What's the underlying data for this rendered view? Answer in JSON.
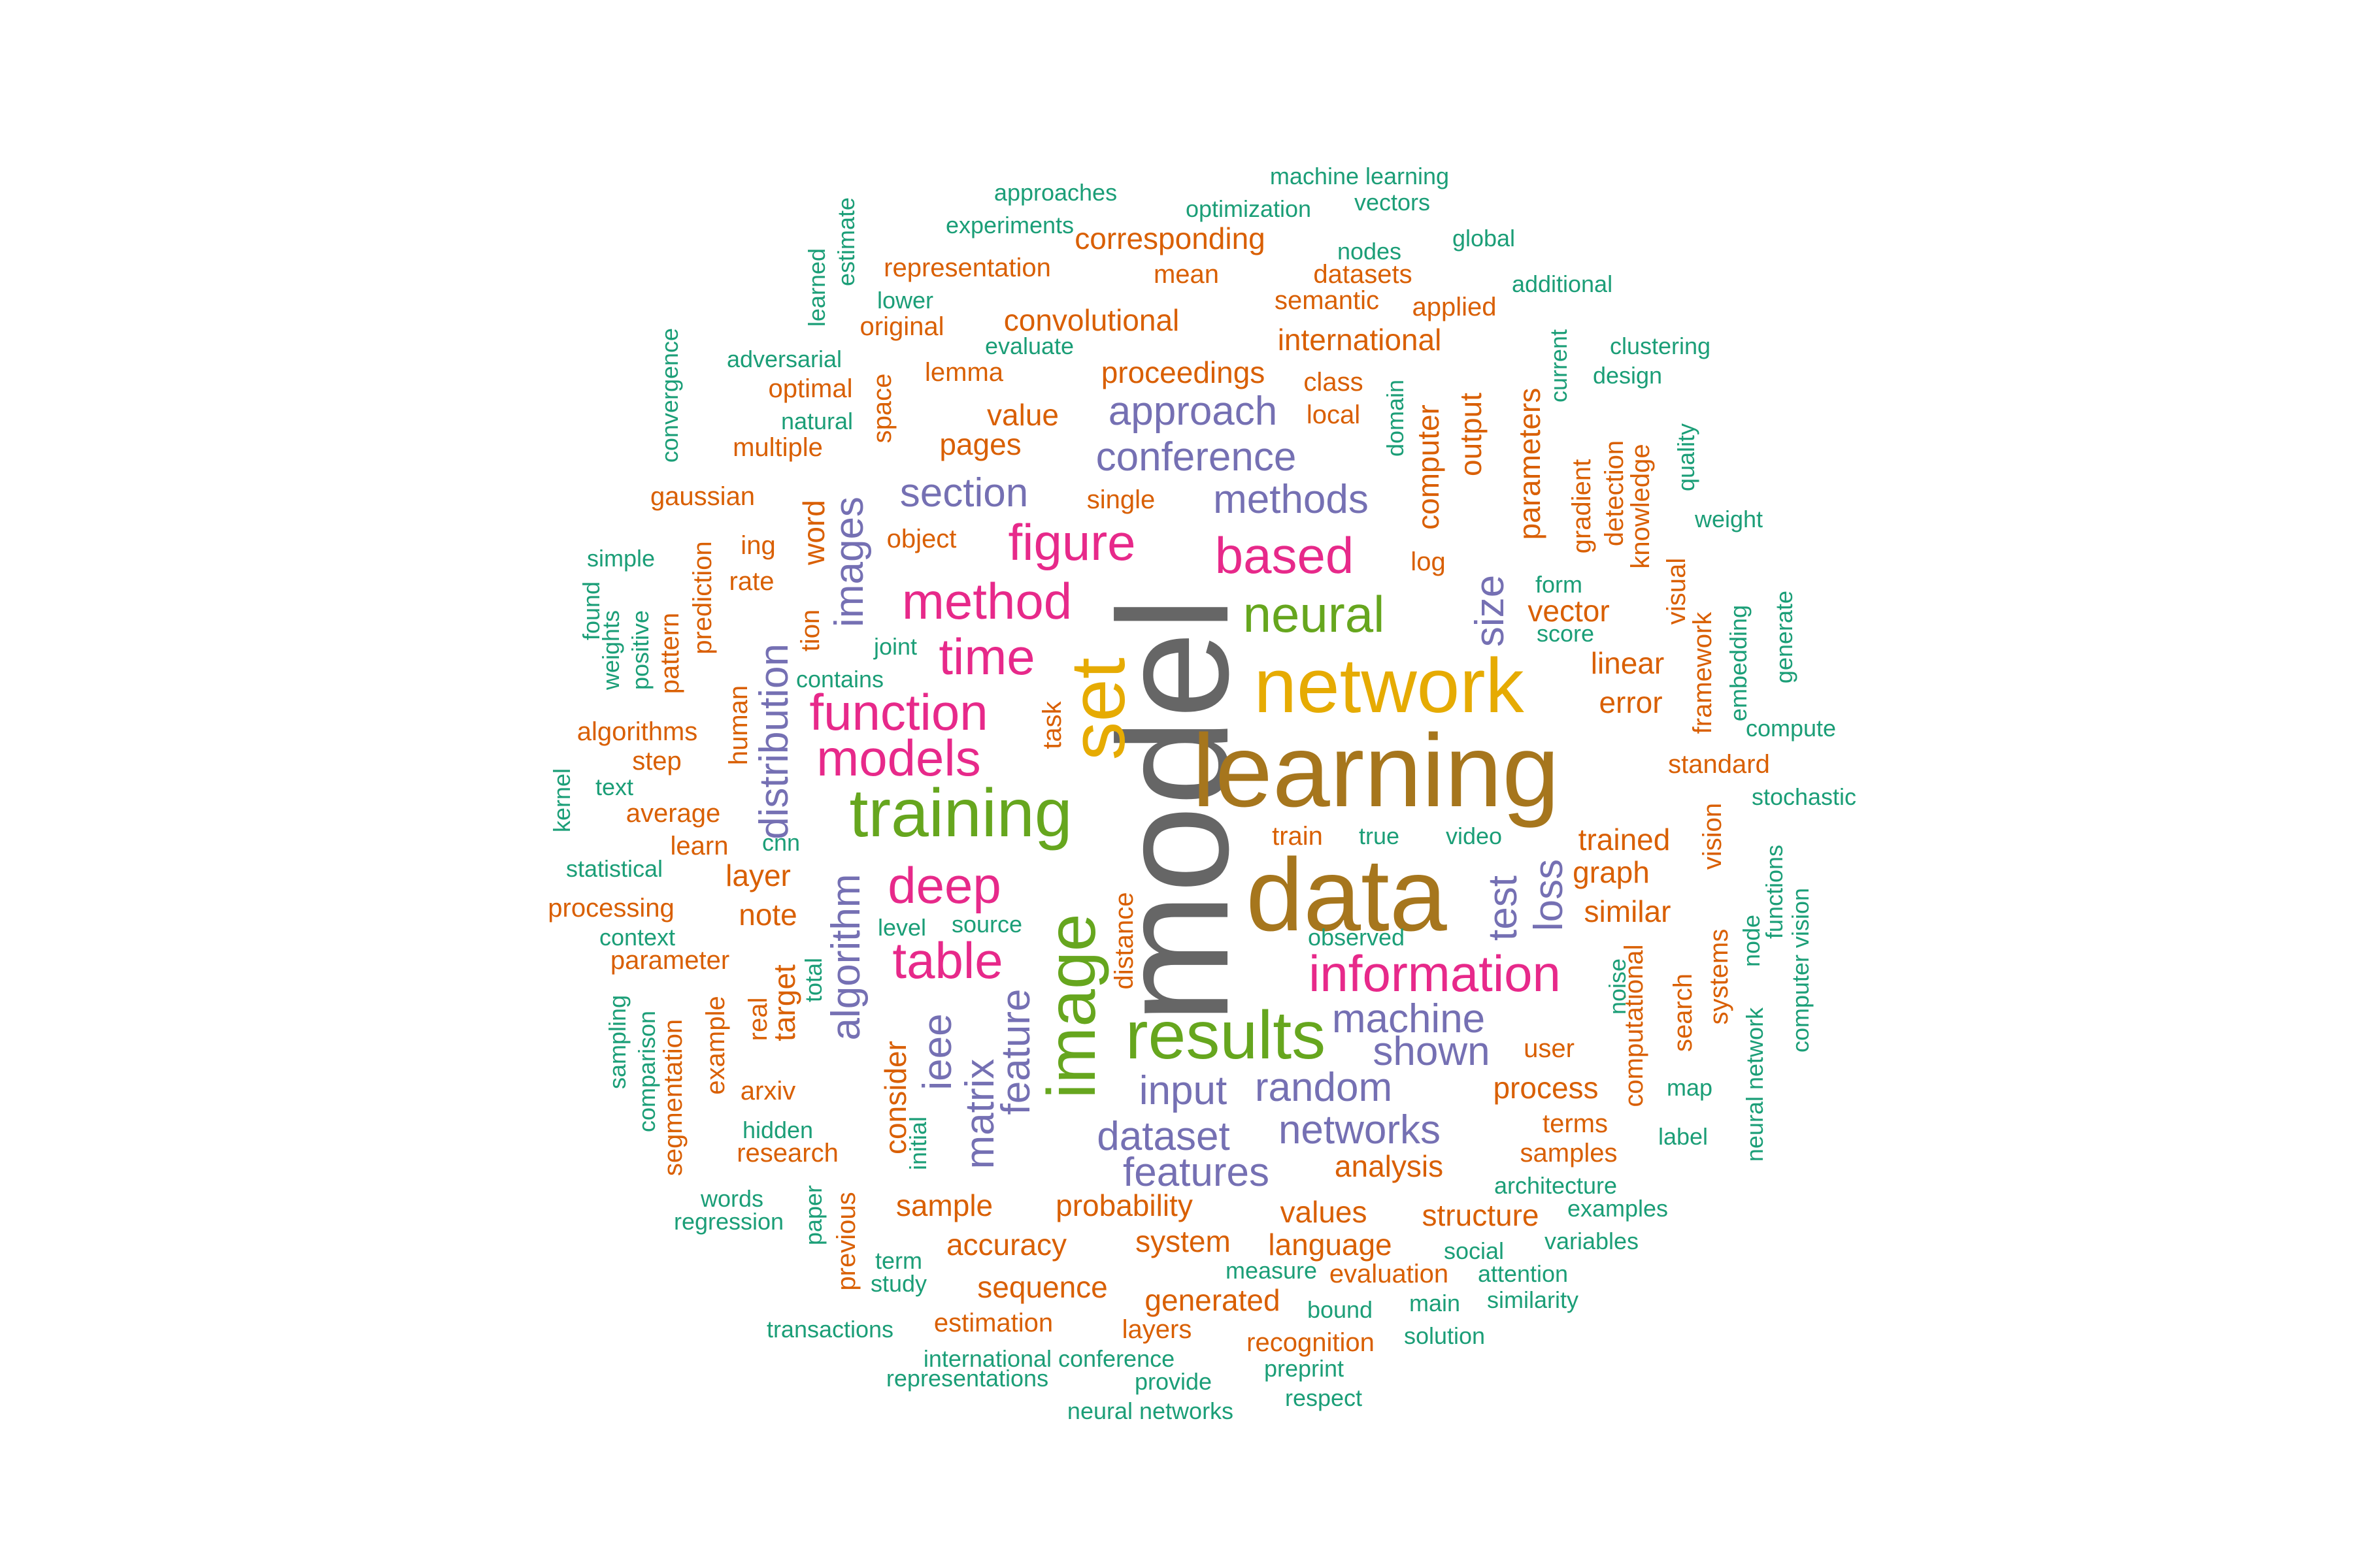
{
  "palette": {
    "green": "#1b9e77",
    "orange": "#d95f02",
    "purple": "#7570b3",
    "pink": "#e7298a",
    "lime": "#66a61e",
    "gold": "#e6ab02",
    "brown": "#a6761d",
    "gray": "#666666"
  },
  "words": [
    {
      "text": "model",
      "color": "gray",
      "tier": 9,
      "rotated": true
    },
    {
      "text": "learning",
      "color": "brown",
      "tier": 8
    },
    {
      "text": "data",
      "color": "brown",
      "tier": 8
    },
    {
      "text": "network",
      "color": "gold",
      "tier": 7
    },
    {
      "text": "set",
      "color": "gold",
      "tier": 7,
      "rotated": true
    },
    {
      "text": "training",
      "color": "lime",
      "tier": 6
    },
    {
      "text": "image",
      "color": "lime",
      "tier": 6,
      "rotated": true
    },
    {
      "text": "results",
      "color": "lime",
      "tier": 6
    },
    {
      "text": "neural",
      "color": "lime",
      "tier": 5
    },
    {
      "text": "based",
      "color": "pink",
      "tier": 5
    },
    {
      "text": "information",
      "color": "pink",
      "tier": 5
    },
    {
      "text": "figure",
      "color": "pink",
      "tier": 5
    },
    {
      "text": "method",
      "color": "pink",
      "tier": 5
    },
    {
      "text": "function",
      "color": "pink",
      "tier": 5
    },
    {
      "text": "models",
      "color": "pink",
      "tier": 5
    },
    {
      "text": "deep",
      "color": "pink",
      "tier": 5
    },
    {
      "text": "table",
      "color": "pink",
      "tier": 5
    },
    {
      "text": "time",
      "color": "pink",
      "tier": 5
    },
    {
      "text": "algorithm",
      "color": "purple",
      "tier": 4,
      "rotated": true
    },
    {
      "text": "feature",
      "color": "purple",
      "tier": 4,
      "rotated": true
    },
    {
      "text": "conference",
      "color": "purple",
      "tier": 4
    },
    {
      "text": "methods",
      "color": "purple",
      "tier": 4
    },
    {
      "text": "section",
      "color": "purple",
      "tier": 4
    },
    {
      "text": "approach",
      "color": "purple",
      "tier": 4
    },
    {
      "text": "random",
      "color": "purple",
      "tier": 4
    },
    {
      "text": "networks",
      "color": "purple",
      "tier": 4
    },
    {
      "text": "machine",
      "color": "purple",
      "tier": 4
    },
    {
      "text": "input",
      "color": "purple",
      "tier": 4
    },
    {
      "text": "dataset",
      "color": "purple",
      "tier": 4
    },
    {
      "text": "features",
      "color": "purple",
      "tier": 4
    },
    {
      "text": "shown",
      "color": "purple",
      "tier": 4
    },
    {
      "text": "images",
      "color": "purple",
      "tier": 4,
      "rotated": true
    },
    {
      "text": "matrix",
      "color": "purple",
      "tier": 4,
      "rotated": true
    },
    {
      "text": "ieee",
      "color": "purple",
      "tier": 4,
      "rotated": true
    },
    {
      "text": "distribution",
      "color": "purple",
      "tier": 4,
      "rotated": true
    },
    {
      "text": "test",
      "color": "purple",
      "tier": 4,
      "rotated": true
    },
    {
      "text": "loss",
      "color": "purple",
      "tier": 4,
      "rotated": true
    },
    {
      "text": "size",
      "color": "purple",
      "tier": 4,
      "rotated": true
    },
    {
      "text": "probability",
      "color": "orange",
      "tier": 3
    },
    {
      "text": "proceedings",
      "color": "orange",
      "tier": 3
    },
    {
      "text": "international",
      "color": "orange",
      "tier": 3
    },
    {
      "text": "convolutional",
      "color": "orange",
      "tier": 3
    },
    {
      "text": "value",
      "color": "orange",
      "tier": 3
    },
    {
      "text": "pages",
      "color": "orange",
      "tier": 3
    },
    {
      "text": "vector",
      "color": "orange",
      "tier": 3
    },
    {
      "text": "values",
      "color": "orange",
      "tier": 3
    },
    {
      "text": "analysis",
      "color": "orange",
      "tier": 3
    },
    {
      "text": "trained",
      "color": "orange",
      "tier": 3
    },
    {
      "text": "graph",
      "color": "orange",
      "tier": 3
    },
    {
      "text": "similar",
      "color": "orange",
      "tier": 3
    },
    {
      "text": "layer",
      "color": "orange",
      "tier": 3
    },
    {
      "text": "note",
      "color": "orange",
      "tier": 3
    },
    {
      "text": "sequence",
      "color": "orange",
      "tier": 3
    },
    {
      "text": "accuracy",
      "color": "orange",
      "tier": 3
    },
    {
      "text": "process",
      "color": "orange",
      "tier": 3
    },
    {
      "text": "structure",
      "color": "orange",
      "tier": 3
    },
    {
      "text": "language",
      "color": "orange",
      "tier": 3
    },
    {
      "text": "system",
      "color": "orange",
      "tier": 3
    },
    {
      "text": "sample",
      "color": "orange",
      "tier": 3
    },
    {
      "text": "generated",
      "color": "orange",
      "tier": 3
    },
    {
      "text": "linear",
      "color": "orange",
      "tier": 3
    },
    {
      "text": "error",
      "color": "orange",
      "tier": 3
    },
    {
      "text": "corresponding",
      "color": "orange",
      "tier": 3
    },
    {
      "text": "computer",
      "color": "orange",
      "tier": 3,
      "rotated": true
    },
    {
      "text": "output",
      "color": "orange",
      "tier": 3,
      "rotated": true
    },
    {
      "text": "parameters",
      "color": "orange",
      "tier": 3,
      "rotated": true
    },
    {
      "text": "word",
      "color": "orange",
      "tier": 3,
      "rotated": true
    },
    {
      "text": "target",
      "color": "orange",
      "tier": 3,
      "rotated": true
    },
    {
      "text": "consider",
      "color": "orange",
      "tier": 3,
      "rotated": true
    },
    {
      "text": "computational",
      "color": "orange",
      "tier": 2,
      "rotated": true
    },
    {
      "text": "representation",
      "color": "orange",
      "tier": 2
    },
    {
      "text": "mean",
      "color": "orange",
      "tier": 2
    },
    {
      "text": "datasets",
      "color": "orange",
      "tier": 2
    },
    {
      "text": "semantic",
      "color": "orange",
      "tier": 2
    },
    {
      "text": "original",
      "color": "orange",
      "tier": 2
    },
    {
      "text": "applied",
      "color": "orange",
      "tier": 2
    },
    {
      "text": "lemma",
      "color": "orange",
      "tier": 2
    },
    {
      "text": "class",
      "color": "orange",
      "tier": 2
    },
    {
      "text": "local",
      "color": "orange",
      "tier": 2
    },
    {
      "text": "optimal",
      "color": "orange",
      "tier": 2
    },
    {
      "text": "multiple",
      "color": "orange",
      "tier": 2
    },
    {
      "text": "gaussian",
      "color": "orange",
      "tier": 2
    },
    {
      "text": "single",
      "color": "orange",
      "tier": 2
    },
    {
      "text": "object",
      "color": "orange",
      "tier": 2
    },
    {
      "text": "ing",
      "color": "orange",
      "tier": 2
    },
    {
      "text": "rate",
      "color": "orange",
      "tier": 2
    },
    {
      "text": "log",
      "color": "orange",
      "tier": 2
    },
    {
      "text": "algorithms",
      "color": "orange",
      "tier": 2
    },
    {
      "text": "step",
      "color": "orange",
      "tier": 2
    },
    {
      "text": "average",
      "color": "orange",
      "tier": 2
    },
    {
      "text": "learn",
      "color": "orange",
      "tier": 2
    },
    {
      "text": "processing",
      "color": "orange",
      "tier": 2
    },
    {
      "text": "parameter",
      "color": "orange",
      "tier": 2
    },
    {
      "text": "standard",
      "color": "orange",
      "tier": 2
    },
    {
      "text": "train",
      "color": "orange",
      "tier": 2
    },
    {
      "text": "user",
      "color": "orange",
      "tier": 2
    },
    {
      "text": "terms",
      "color": "orange",
      "tier": 2
    },
    {
      "text": "samples",
      "color": "orange",
      "tier": 2
    },
    {
      "text": "arxiv",
      "color": "orange",
      "tier": 2
    },
    {
      "text": "research",
      "color": "orange",
      "tier": 2
    },
    {
      "text": "evaluation",
      "color": "orange",
      "tier": 2
    },
    {
      "text": "recognition",
      "color": "orange",
      "tier": 2
    },
    {
      "text": "estimation",
      "color": "orange",
      "tier": 2
    },
    {
      "text": "layers",
      "color": "orange",
      "tier": 2
    },
    {
      "text": "space",
      "color": "orange",
      "tier": 2,
      "rotated": true
    },
    {
      "text": "prediction",
      "color": "orange",
      "tier": 2,
      "rotated": true
    },
    {
      "text": "pattern",
      "color": "orange",
      "tier": 2,
      "rotated": true
    },
    {
      "text": "tion",
      "color": "orange",
      "tier": 2,
      "rotated": true
    },
    {
      "text": "human",
      "color": "orange",
      "tier": 2,
      "rotated": true
    },
    {
      "text": "task",
      "color": "orange",
      "tier": 2,
      "rotated": true
    },
    {
      "text": "distance",
      "color": "orange",
      "tier": 2,
      "rotated": true
    },
    {
      "text": "real",
      "color": "orange",
      "tier": 2,
      "rotated": true
    },
    {
      "text": "example",
      "color": "orange",
      "tier": 2,
      "rotated": true
    },
    {
      "text": "segmentation",
      "color": "orange",
      "tier": 2,
      "rotated": true
    },
    {
      "text": "previous",
      "color": "orange",
      "tier": 2,
      "rotated": true
    },
    {
      "text": "gradient",
      "color": "orange",
      "tier": 2,
      "rotated": true
    },
    {
      "text": "detection",
      "color": "orange",
      "tier": 2,
      "rotated": true
    },
    {
      "text": "knowledge",
      "color": "orange",
      "tier": 2,
      "rotated": true
    },
    {
      "text": "visual",
      "color": "orange",
      "tier": 2,
      "rotated": true
    },
    {
      "text": "framework",
      "color": "orange",
      "tier": 2,
      "rotated": true
    },
    {
      "text": "vision",
      "color": "orange",
      "tier": 2,
      "rotated": true
    },
    {
      "text": "search",
      "color": "orange",
      "tier": 2,
      "rotated": true
    },
    {
      "text": "systems",
      "color": "orange",
      "tier": 2,
      "rotated": true
    },
    {
      "text": "machine learning",
      "color": "green",
      "tier": 1
    },
    {
      "text": "approaches",
      "color": "green",
      "tier": 1
    },
    {
      "text": "optimization",
      "color": "green",
      "tier": 1
    },
    {
      "text": "vectors",
      "color": "green",
      "tier": 1
    },
    {
      "text": "experiments",
      "color": "green",
      "tier": 1
    },
    {
      "text": "nodes",
      "color": "green",
      "tier": 1
    },
    {
      "text": "global",
      "color": "green",
      "tier": 1
    },
    {
      "text": "additional",
      "color": "green",
      "tier": 1
    },
    {
      "text": "lower",
      "color": "green",
      "tier": 1
    },
    {
      "text": "evaluate",
      "color": "green",
      "tier": 1
    },
    {
      "text": "adversarial",
      "color": "green",
      "tier": 1
    },
    {
      "text": "natural",
      "color": "green",
      "tier": 1
    },
    {
      "text": "clustering",
      "color": "green",
      "tier": 1
    },
    {
      "text": "design",
      "color": "green",
      "tier": 1
    },
    {
      "text": "weight",
      "color": "green",
      "tier": 1
    },
    {
      "text": "simple",
      "color": "green",
      "tier": 1
    },
    {
      "text": "form",
      "color": "green",
      "tier": 1
    },
    {
      "text": "score",
      "color": "green",
      "tier": 1
    },
    {
      "text": "joint",
      "color": "green",
      "tier": 1
    },
    {
      "text": "contains",
      "color": "green",
      "tier": 1
    },
    {
      "text": "compute",
      "color": "green",
      "tier": 1
    },
    {
      "text": "stochastic",
      "color": "green",
      "tier": 1
    },
    {
      "text": "text",
      "color": "green",
      "tier": 1
    },
    {
      "text": "cnn",
      "color": "green",
      "tier": 1
    },
    {
      "text": "true",
      "color": "green",
      "tier": 1
    },
    {
      "text": "video",
      "color": "green",
      "tier": 1
    },
    {
      "text": "statistical",
      "color": "green",
      "tier": 1
    },
    {
      "text": "level",
      "color": "green",
      "tier": 1
    },
    {
      "text": "source",
      "color": "green",
      "tier": 1
    },
    {
      "text": "observed",
      "color": "green",
      "tier": 1
    },
    {
      "text": "context",
      "color": "green",
      "tier": 1
    },
    {
      "text": "map",
      "color": "green",
      "tier": 1
    },
    {
      "text": "label",
      "color": "green",
      "tier": 1
    },
    {
      "text": "hidden",
      "color": "green",
      "tier": 1
    },
    {
      "text": "words",
      "color": "green",
      "tier": 1
    },
    {
      "text": "regression",
      "color": "green",
      "tier": 1
    },
    {
      "text": "architecture",
      "color": "green",
      "tier": 1
    },
    {
      "text": "examples",
      "color": "green",
      "tier": 1
    },
    {
      "text": "variables",
      "color": "green",
      "tier": 1
    },
    {
      "text": "social",
      "color": "green",
      "tier": 1
    },
    {
      "text": "attention",
      "color": "green",
      "tier": 1
    },
    {
      "text": "term",
      "color": "green",
      "tier": 1
    },
    {
      "text": "study",
      "color": "green",
      "tier": 1
    },
    {
      "text": "measure",
      "color": "green",
      "tier": 1
    },
    {
      "text": "main",
      "color": "green",
      "tier": 1
    },
    {
      "text": "similarity",
      "color": "green",
      "tier": 1
    },
    {
      "text": "bound",
      "color": "green",
      "tier": 1
    },
    {
      "text": "transactions",
      "color": "green",
      "tier": 1
    },
    {
      "text": "solution",
      "color": "green",
      "tier": 1
    },
    {
      "text": "international conference",
      "color": "green",
      "tier": 1
    },
    {
      "text": "representations",
      "color": "green",
      "tier": 1
    },
    {
      "text": "provide",
      "color": "green",
      "tier": 1
    },
    {
      "text": "preprint",
      "color": "green",
      "tier": 1
    },
    {
      "text": "respect",
      "color": "green",
      "tier": 1
    },
    {
      "text": "neural networks",
      "color": "green",
      "tier": 1
    },
    {
      "text": "estimate",
      "color": "green",
      "tier": 1,
      "rotated": true
    },
    {
      "text": "learned",
      "color": "green",
      "tier": 1,
      "rotated": true
    },
    {
      "text": "convergence",
      "color": "green",
      "tier": 1,
      "rotated": true
    },
    {
      "text": "domain",
      "color": "green",
      "tier": 1,
      "rotated": true
    },
    {
      "text": "current",
      "color": "green",
      "tier": 1,
      "rotated": true
    },
    {
      "text": "quality",
      "color": "green",
      "tier": 1,
      "rotated": true
    },
    {
      "text": "found",
      "color": "green",
      "tier": 1,
      "rotated": true
    },
    {
      "text": "weights",
      "color": "green",
      "tier": 1,
      "rotated": true
    },
    {
      "text": "positive",
      "color": "green",
      "tier": 1,
      "rotated": true
    },
    {
      "text": "embedding",
      "color": "green",
      "tier": 1,
      "rotated": true
    },
    {
      "text": "generate",
      "color": "green",
      "tier": 1,
      "rotated": true
    },
    {
      "text": "kernel",
      "color": "green",
      "tier": 1,
      "rotated": true
    },
    {
      "text": "total",
      "color": "green",
      "tier": 1,
      "rotated": true
    },
    {
      "text": "initial",
      "color": "green",
      "tier": 1,
      "rotated": true
    },
    {
      "text": "paper",
      "color": "green",
      "tier": 1,
      "rotated": true
    },
    {
      "text": "sampling",
      "color": "green",
      "tier": 1,
      "rotated": true
    },
    {
      "text": "comparison",
      "color": "green",
      "tier": 1,
      "rotated": true
    },
    {
      "text": "noise",
      "color": "green",
      "tier": 1,
      "rotated": true
    },
    {
      "text": "node",
      "color": "green",
      "tier": 1,
      "rotated": true
    },
    {
      "text": "functions",
      "color": "green",
      "tier": 1,
      "rotated": true
    },
    {
      "text": "computer vision",
      "color": "green",
      "tier": 1,
      "rotated": true
    },
    {
      "text": "neural network",
      "color": "green",
      "tier": 1,
      "rotated": true
    }
  ]
}
